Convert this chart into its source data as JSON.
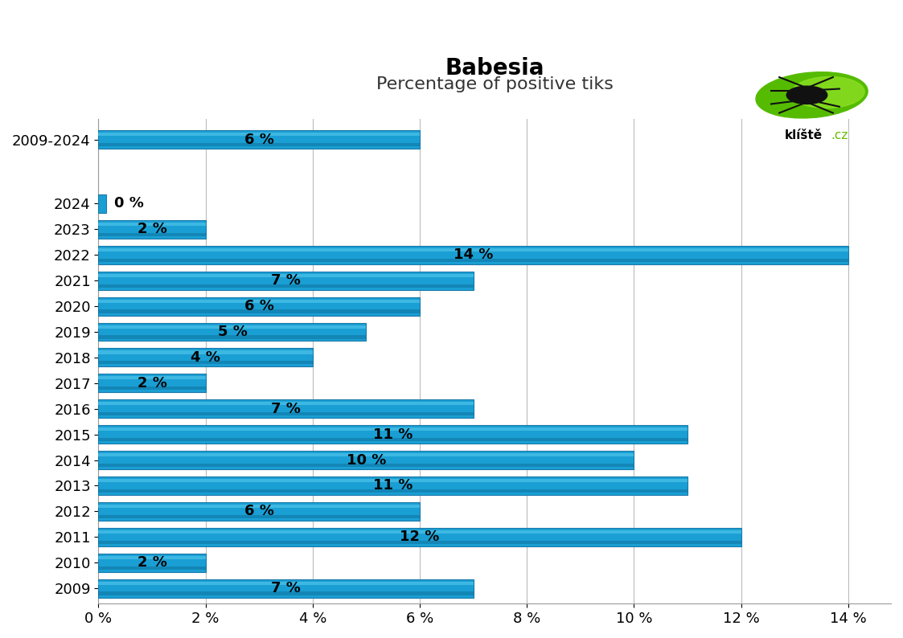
{
  "title": "Babesia",
  "subtitle": "Percentage of positive tiks",
  "categories": [
    "2009-2024",
    "2024",
    "2023",
    "2022",
    "2021",
    "2020",
    "2019",
    "2018",
    "2017",
    "2016",
    "2015",
    "2014",
    "2013",
    "2012",
    "2011",
    "2010",
    "2009"
  ],
  "values": [
    6,
    0,
    2,
    14,
    7,
    6,
    5,
    4,
    2,
    7,
    11,
    10,
    11,
    6,
    12,
    2,
    7
  ],
  "bar_color_main": "#1a9fd4",
  "bar_color_top": "#4dc3e8",
  "bar_color_bottom": "#0e6e99",
  "bar_edge_color": "#1a7aaa",
  "xlim_max": 14.8,
  "xticks": [
    0,
    2,
    4,
    6,
    8,
    10,
    12,
    14
  ],
  "xtick_labels": [
    "0 %",
    "2 %",
    "4 %",
    "6 %",
    "8 %",
    "10 %",
    "12 %",
    "14 %"
  ],
  "title_fontsize": 20,
  "subtitle_fontsize": 16,
  "label_fontsize": 13,
  "tick_fontsize": 13,
  "background_color": "#ffffff",
  "grid_color": "#bbbbbb",
  "bar_label_color": "#000000",
  "ytick_color": "#000000"
}
